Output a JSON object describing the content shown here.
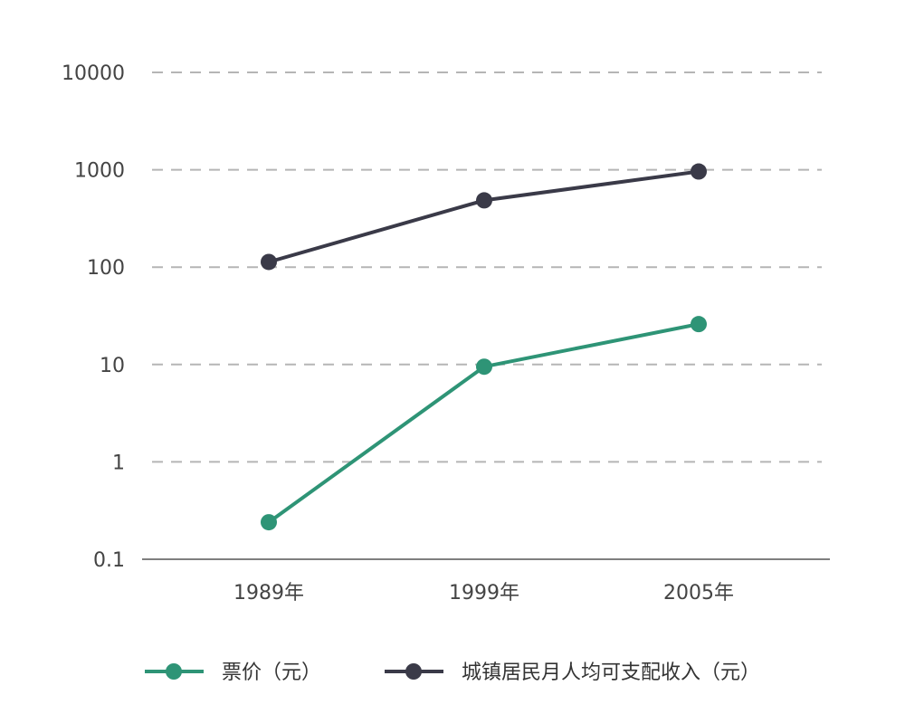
{
  "chart_data": {
    "type": "line",
    "title": "",
    "xlabel": "",
    "ylabel": "",
    "y_scale": "log",
    "ylim": [
      0.1,
      10000
    ],
    "y_ticks": [
      {
        "value": 0.1,
        "label": "0.1"
      },
      {
        "value": 1,
        "label": "1"
      },
      {
        "value": 10,
        "label": "10"
      },
      {
        "value": 100,
        "label": "100"
      },
      {
        "value": 1000,
        "label": "1000"
      },
      {
        "value": 10000,
        "label": "10000"
      }
    ],
    "grid": "horizontal dashed",
    "legend_position": "bottom",
    "categories": [
      "1989年",
      "1999年",
      "2005年"
    ],
    "series": [
      {
        "name": "票价（元）",
        "color": "#2e9476",
        "values": [
          0.24,
          9.5,
          26
        ]
      },
      {
        "name": "城镇居民月人均可支配收入（元）",
        "color": "#3a3a48",
        "values": [
          113,
          485,
          960
        ]
      }
    ]
  }
}
